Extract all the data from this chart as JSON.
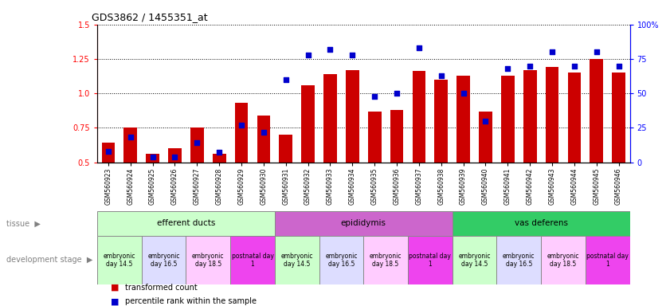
{
  "title": "GDS3862 / 1455351_at",
  "samples": [
    "GSM560923",
    "GSM560924",
    "GSM560925",
    "GSM560926",
    "GSM560927",
    "GSM560928",
    "GSM560929",
    "GSM560930",
    "GSM560931",
    "GSM560932",
    "GSM560933",
    "GSM560934",
    "GSM560935",
    "GSM560936",
    "GSM560937",
    "GSM560938",
    "GSM560939",
    "GSM560940",
    "GSM560941",
    "GSM560942",
    "GSM560943",
    "GSM560944",
    "GSM560945",
    "GSM560946"
  ],
  "transformed_count": [
    0.64,
    0.75,
    0.56,
    0.6,
    0.75,
    0.56,
    0.93,
    0.84,
    0.7,
    1.06,
    1.14,
    1.17,
    0.87,
    0.88,
    1.16,
    1.1,
    1.13,
    0.87,
    1.13,
    1.17,
    1.19,
    1.15,
    1.25,
    1.15
  ],
  "percentile_rank": [
    8,
    18,
    4,
    4,
    14,
    7,
    27,
    22,
    60,
    78,
    82,
    78,
    48,
    50,
    83,
    63,
    50,
    30,
    68,
    70,
    80,
    70,
    80,
    70
  ],
  "ylim_left": [
    0.5,
    1.5
  ],
  "ylim_right": [
    0,
    100
  ],
  "yticks_left": [
    0.5,
    0.75,
    1.0,
    1.25,
    1.5
  ],
  "yticks_right": [
    0,
    25,
    50,
    75,
    100
  ],
  "bar_color": "#cc0000",
  "scatter_color": "#0000cc",
  "tissue_groups": [
    {
      "label": "efferent ducts",
      "start": 0,
      "end": 7,
      "color": "#ccffcc"
    },
    {
      "label": "epididymis",
      "start": 8,
      "end": 15,
      "color": "#cc66cc"
    },
    {
      "label": "vas deferens",
      "start": 16,
      "end": 23,
      "color": "#33cc66"
    }
  ],
  "dev_stage_groups": [
    {
      "label": "embryonic\nday 14.5",
      "start": 0,
      "end": 1,
      "color": "#ccffcc"
    },
    {
      "label": "embryonic\nday 16.5",
      "start": 2,
      "end": 3,
      "color": "#ddccff"
    },
    {
      "label": "embryonic\nday 18.5",
      "start": 4,
      "end": 5,
      "color": "#ffbbff"
    },
    {
      "label": "postnatal day\n1",
      "start": 6,
      "end": 7,
      "color": "#ee44ee"
    },
    {
      "label": "embryonic\nday 14.5",
      "start": 8,
      "end": 9,
      "color": "#ccffcc"
    },
    {
      "label": "embryonic\nday 16.5",
      "start": 10,
      "end": 11,
      "color": "#ddccff"
    },
    {
      "label": "embryonic\nday 18.5",
      "start": 12,
      "end": 13,
      "color": "#ffbbff"
    },
    {
      "label": "postnatal day\n1",
      "start": 14,
      "end": 15,
      "color": "#ee44ee"
    },
    {
      "label": "embryonic\nday 14.5",
      "start": 16,
      "end": 17,
      "color": "#ccffcc"
    },
    {
      "label": "embryonic\nday 16.5",
      "start": 18,
      "end": 19,
      "color": "#ddccff"
    },
    {
      "label": "embryonic\nday 18.5",
      "start": 20,
      "end": 21,
      "color": "#ffbbff"
    },
    {
      "label": "postnatal day\n1",
      "start": 22,
      "end": 23,
      "color": "#ee44ee"
    }
  ]
}
